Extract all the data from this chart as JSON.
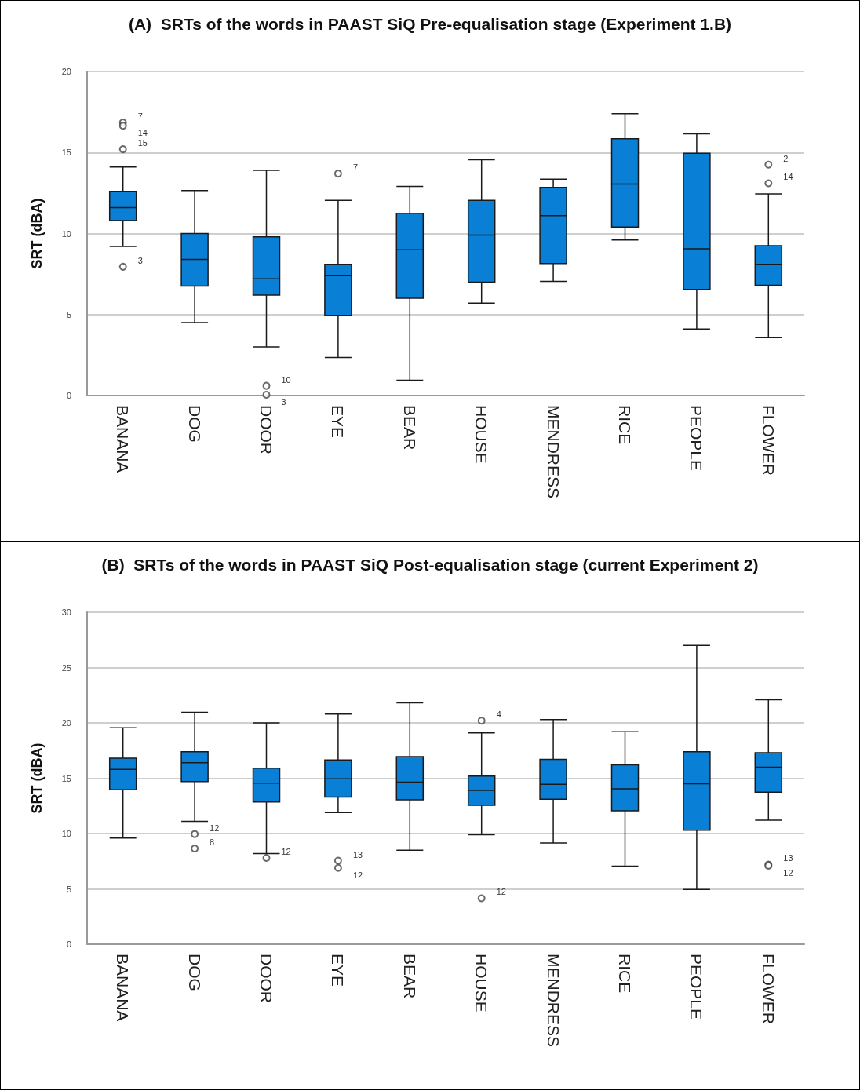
{
  "chart_data": [
    {
      "type": "box",
      "title": "(A)  SRTs of the words in PAAST SiQ Pre-equalisation stage (Experiment 1.B)",
      "ylabel": "SRT (dBA)",
      "categories": [
        "BANANA",
        "DOG",
        "DOOR",
        "EYE",
        "BEAR",
        "HOUSE",
        "MENDRESS",
        "RICE",
        "PEOPLE",
        "FLOWER"
      ],
      "ylim": [
        0,
        20
      ],
      "yticks": [
        0,
        5,
        10,
        15,
        20
      ],
      "grid": "y",
      "marker": "circle",
      "series": [
        {
          "color": "#0a7fd6",
          "boxes": [
            {
              "low": 9.2,
              "q1": 10.8,
              "median": 11.6,
              "q3": 12.6,
              "high": 14.1
            },
            {
              "low": 4.5,
              "q1": 6.75,
              "median": 8.4,
              "q3": 10.0,
              "high": 12.65
            },
            {
              "low": 3.0,
              "q1": 6.2,
              "median": 7.2,
              "q3": 9.8,
              "high": 13.9
            },
            {
              "low": 2.35,
              "q1": 4.95,
              "median": 7.4,
              "q3": 8.1,
              "high": 12.05
            },
            {
              "low": 0.95,
              "q1": 6.0,
              "median": 9.0,
              "q3": 11.25,
              "high": 12.9
            },
            {
              "low": 5.7,
              "q1": 7.0,
              "median": 9.9,
              "q3": 12.05,
              "high": 14.55
            },
            {
              "low": 7.05,
              "q1": 8.15,
              "median": 11.1,
              "q3": 12.85,
              "high": 13.35
            },
            {
              "low": 9.6,
              "q1": 10.4,
              "median": 13.05,
              "q3": 15.85,
              "high": 17.4
            },
            {
              "low": 4.1,
              "q1": 6.55,
              "median": 9.05,
              "q3": 14.95,
              "high": 16.15
            },
            {
              "low": 3.6,
              "q1": 6.8,
              "median": 8.1,
              "q3": 9.25,
              "high": 12.45
            }
          ]
        },
        {
          "type": "scatter",
          "color": "#444444",
          "x": [
            "BANANA",
            "BANANA",
            "BANANA",
            "BANANA",
            "DOOR",
            "DOOR",
            "EYE",
            "FLOWER",
            "FLOWER"
          ],
          "values": [
            16.85,
            16.65,
            15.2,
            7.95,
            0.6,
            0.05,
            13.7,
            14.25,
            13.1
          ]
        }
      ],
      "annotations": [
        {
          "text": "7",
          "x": "BANANA",
          "y": 16.85
        },
        {
          "text": "14",
          "x": "BANANA",
          "y": 16.65
        },
        {
          "text": "15",
          "x": "BANANA",
          "y": 15.2
        },
        {
          "text": "3",
          "x": "BANANA",
          "y": 7.95
        },
        {
          "text": "10",
          "x": "DOOR",
          "y": 0.6
        },
        {
          "text": "3",
          "x": "DOOR",
          "y": 0.05
        },
        {
          "text": "7",
          "x": "EYE",
          "y": 13.7
        },
        {
          "text": "2",
          "x": "FLOWER",
          "y": 14.25
        },
        {
          "text": "14",
          "x": "FLOWER",
          "y": 13.1
        }
      ]
    },
    {
      "type": "box",
      "title": "(B)  SRTs of the words in PAAST SiQ Post-equalisation stage (current Experiment 2)",
      "ylabel": "SRT (dBA)",
      "categories": [
        "BANANA",
        "DOG",
        "DOOR",
        "EYE",
        "BEAR",
        "HOUSE",
        "MENDRESS",
        "RICE",
        "PEOPLE",
        "FLOWER"
      ],
      "ylim": [
        0,
        30
      ],
      "yticks": [
        0,
        5,
        10,
        15,
        20,
        25,
        30
      ],
      "grid": "y",
      "marker": "circle",
      "series": [
        {
          "color": "#0a7fd6",
          "boxes": [
            {
              "low": 9.6,
              "q1": 13.95,
              "median": 15.8,
              "q3": 16.8,
              "high": 19.55
            },
            {
              "low": 11.1,
              "q1": 14.7,
              "median": 16.4,
              "q3": 17.4,
              "high": 20.95
            },
            {
              "low": 8.2,
              "q1": 12.85,
              "median": 14.55,
              "q3": 15.9,
              "high": 20.0
            },
            {
              "low": 11.9,
              "q1": 13.3,
              "median": 14.95,
              "q3": 16.65,
              "high": 20.8
            },
            {
              "low": 8.5,
              "q1": 13.05,
              "median": 14.65,
              "q3": 16.95,
              "high": 21.8
            },
            {
              "low": 9.9,
              "q1": 12.55,
              "median": 13.9,
              "q3": 15.2,
              "high": 19.1
            },
            {
              "low": 9.15,
              "q1": 13.1,
              "median": 14.45,
              "q3": 16.7,
              "high": 20.3
            },
            {
              "low": 7.05,
              "q1": 12.05,
              "median": 14.05,
              "q3": 16.2,
              "high": 19.2
            },
            {
              "low": 4.95,
              "q1": 10.3,
              "median": 14.5,
              "q3": 17.4,
              "high": 27.0
            },
            {
              "low": 11.2,
              "q1": 13.75,
              "median": 16.0,
              "q3": 17.3,
              "high": 22.1
            }
          ]
        },
        {
          "type": "scatter",
          "color": "#444444",
          "x": [
            "DOG",
            "DOG",
            "DOOR",
            "EYE",
            "EYE",
            "HOUSE",
            "HOUSE",
            "FLOWER",
            "FLOWER"
          ],
          "values": [
            9.95,
            8.65,
            7.8,
            7.55,
            6.9,
            20.2,
            4.15,
            7.2,
            7.1
          ]
        }
      ],
      "annotations": [
        {
          "text": "12",
          "x": "DOG",
          "y": 9.95
        },
        {
          "text": "8",
          "x": "DOG",
          "y": 8.65
        },
        {
          "text": "12",
          "x": "DOOR",
          "y": 7.8
        },
        {
          "text": "13",
          "x": "EYE",
          "y": 7.55
        },
        {
          "text": "12",
          "x": "EYE",
          "y": 6.9
        },
        {
          "text": "4",
          "x": "HOUSE",
          "y": 20.2
        },
        {
          "text": "12",
          "x": "HOUSE",
          "y": 4.15
        },
        {
          "text": "13",
          "x": "FLOWER",
          "y": 7.2
        },
        {
          "text": "12",
          "x": "FLOWER",
          "y": 7.1
        }
      ]
    }
  ]
}
